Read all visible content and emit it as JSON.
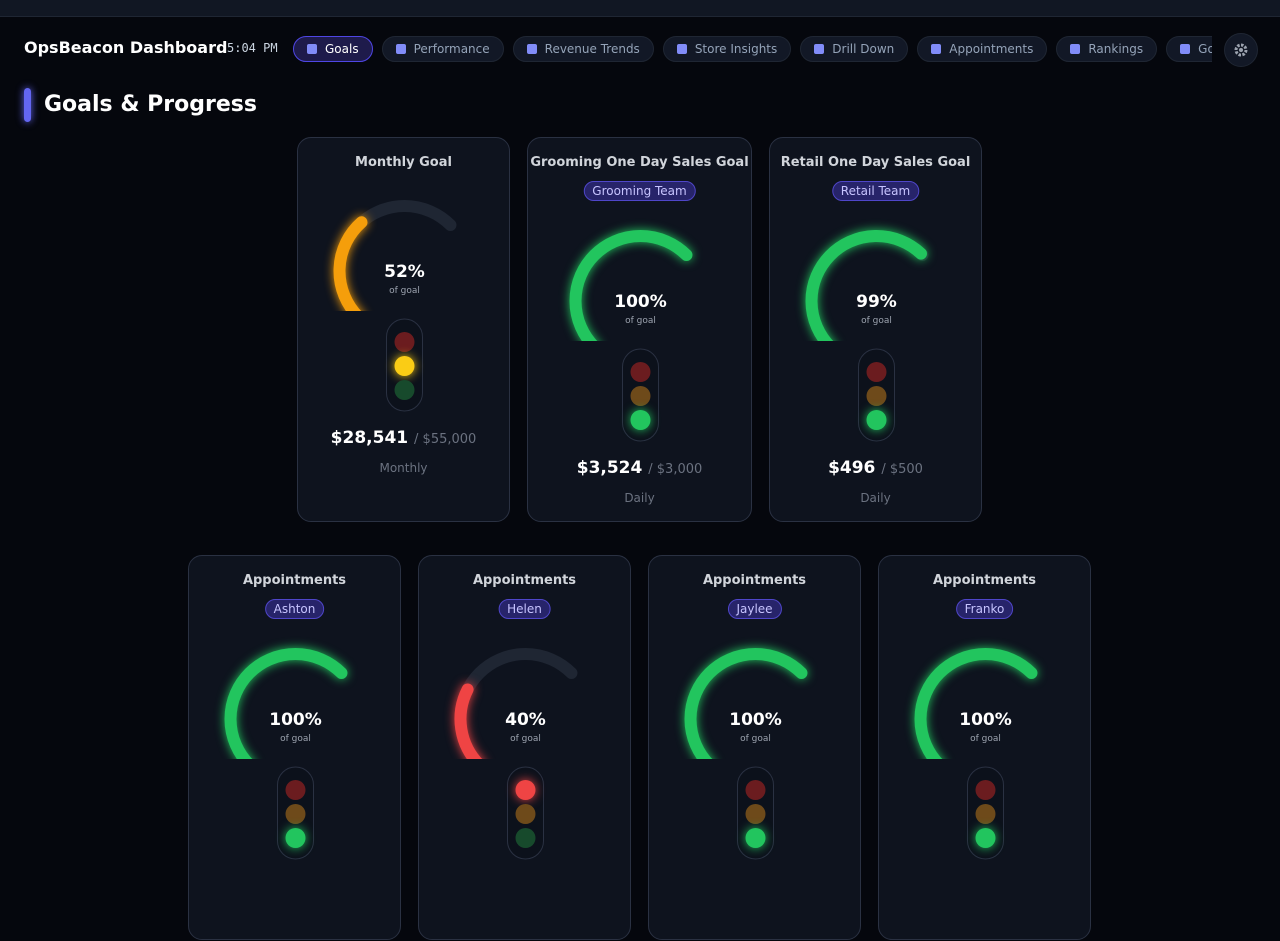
{
  "header": {
    "title": "OpsBeacon Dashboard",
    "time": "5:04 PM",
    "tabs": [
      {
        "label": "Goals",
        "active": true
      },
      {
        "label": "Performance",
        "active": false
      },
      {
        "label": "Revenue Trends",
        "active": false
      },
      {
        "label": "Store Insights",
        "active": false
      },
      {
        "label": "Drill Down",
        "active": false
      },
      {
        "label": "Appointments",
        "active": false
      },
      {
        "label": "Rankings",
        "active": false
      },
      {
        "label": "Google",
        "active": false
      }
    ]
  },
  "section": {
    "title": "Goals & Progress"
  },
  "goal_cards": [
    {
      "title": "Monthly Goal",
      "percent": {
        "value": 52,
        "label": "52%"
      },
      "caption": "of goal",
      "status": "yellow",
      "amount": "$28,541",
      "target": "/ $55,000",
      "period": "Monthly"
    },
    {
      "title": "Grooming One Day Sales Goal",
      "badge": "Grooming Team",
      "percent": {
        "value": 100,
        "label": "100%"
      },
      "caption": "of goal",
      "status": "green",
      "amount": "$3,524",
      "target": "/ $3,000",
      "period": "Daily"
    },
    {
      "title": "Retail One Day Sales Goal",
      "badge": "Retail Team",
      "percent": {
        "value": 99,
        "label": "99%"
      },
      "caption": "of goal",
      "status": "green",
      "amount": "$496",
      "target": "/ $500",
      "period": "Daily"
    }
  ],
  "appointment_cards": [
    {
      "title": "Appointments",
      "badge": "Ashton",
      "percent": {
        "value": 100,
        "label": "100%"
      },
      "caption": "of goal",
      "status": "green"
    },
    {
      "title": "Appointments",
      "badge": "Helen",
      "percent": {
        "value": 40,
        "label": "40%"
      },
      "caption": "of goal",
      "status": "red"
    },
    {
      "title": "Appointments",
      "badge": "Jaylee",
      "percent": {
        "value": 100,
        "label": "100%"
      },
      "caption": "of goal",
      "status": "green"
    },
    {
      "title": "Appointments",
      "badge": "Franko",
      "percent": {
        "value": 100,
        "label": "100%"
      },
      "caption": "of goal",
      "status": "green"
    }
  ]
}
